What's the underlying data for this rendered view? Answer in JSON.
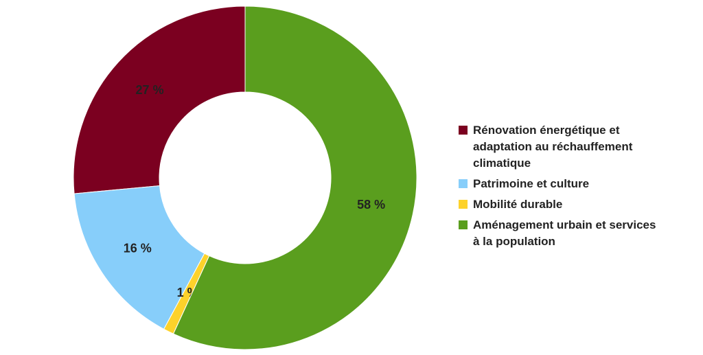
{
  "chart_data": {
    "type": "donut",
    "categories": [
      "Rénovation énergétique et adaptation au réchauffement climatique",
      "Patrimoine et culture",
      "Mobilité durable",
      "Aménagement urbain et services à la population"
    ],
    "values": [
      27,
      16,
      1,
      58
    ],
    "value_labels": [
      "27 %",
      "16 %",
      "1 %",
      "58 %"
    ],
    "colors": [
      "#7b0020",
      "#87cefa",
      "#fdd22b",
      "#5a9e1e"
    ],
    "legend": "right"
  }
}
